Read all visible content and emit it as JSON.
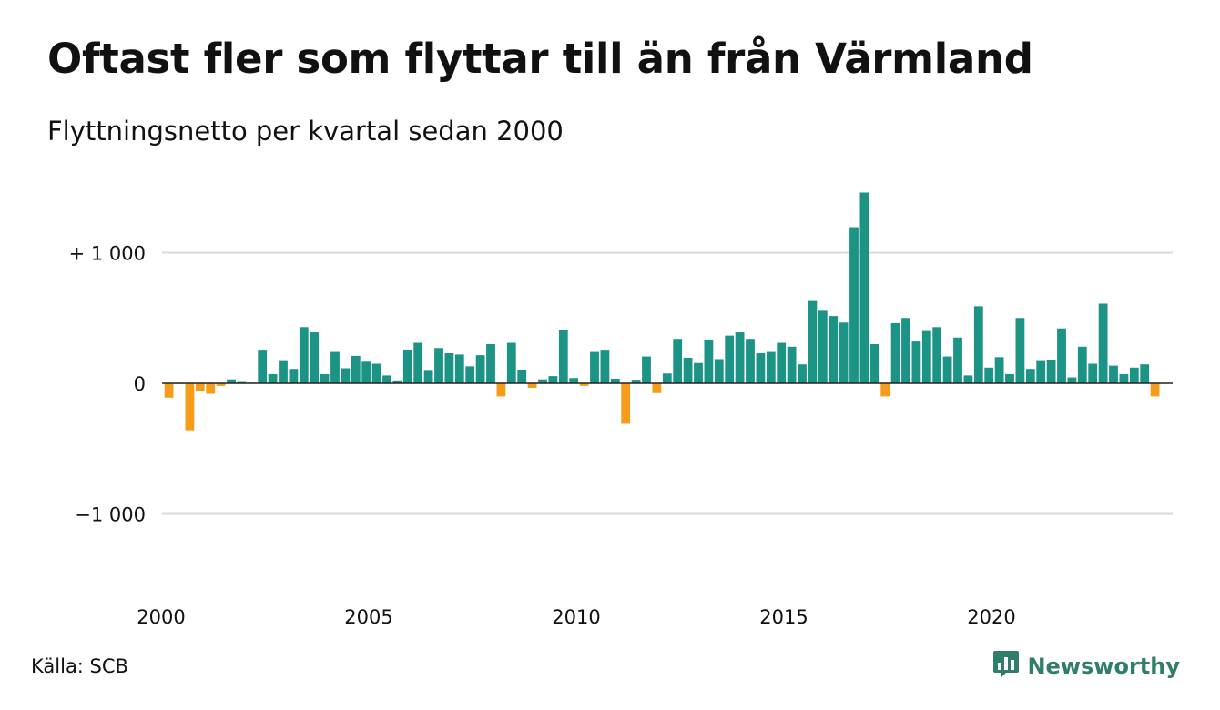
{
  "title": "Oftast fler som flyttar till än från Värmland",
  "subtitle": "Flyttningsnetto per kvartal sedan 2000",
  "source": "Källa: SCB",
  "brand": {
    "name": "Newsworthy",
    "icon": "newsworthy-logo-icon",
    "color": "#2f7d6a"
  },
  "colors": {
    "positive": "#1b9485",
    "negative": "#f59c1a",
    "grid": "#d9d9d9",
    "text": "#111111"
  },
  "chart_data": {
    "type": "bar",
    "title": "Oftast fler som flyttar till än från Värmland",
    "subtitle": "Flyttningsnetto per kvartal sedan 2000",
    "xlabel": "",
    "ylabel": "",
    "x_start": "2000 Q1",
    "frequency": "quarterly",
    "x_ticks": [
      "2000",
      "2005",
      "2010",
      "2015",
      "2020"
    ],
    "y_ticks": [
      {
        "value": 1000,
        "label": "+ 1 000"
      },
      {
        "value": 0,
        "label": "0"
      },
      {
        "value": -1000,
        "label": "−1 000"
      }
    ],
    "ylim": [
      -1500,
      1500
    ],
    "grid": true,
    "legend": "none",
    "values": [
      -110,
      -5,
      -360,
      -60,
      -80,
      -20,
      30,
      10,
      5,
      250,
      70,
      170,
      110,
      430,
      390,
      70,
      240,
      115,
      210,
      165,
      150,
      60,
      15,
      255,
      310,
      95,
      270,
      230,
      220,
      130,
      215,
      300,
      -100,
      310,
      100,
      -35,
      30,
      55,
      410,
      40,
      -20,
      240,
      250,
      35,
      -310,
      20,
      205,
      -75,
      75,
      340,
      195,
      155,
      335,
      185,
      365,
      390,
      340,
      230,
      240,
      310,
      280,
      145,
      630,
      555,
      515,
      465,
      1195,
      1460,
      300,
      -100,
      460,
      500,
      320,
      400,
      430,
      205,
      350,
      60,
      590,
      120,
      200,
      70,
      500,
      110,
      170,
      180,
      420,
      45,
      280,
      150,
      610,
      135,
      70,
      120,
      145,
      -100
    ]
  }
}
